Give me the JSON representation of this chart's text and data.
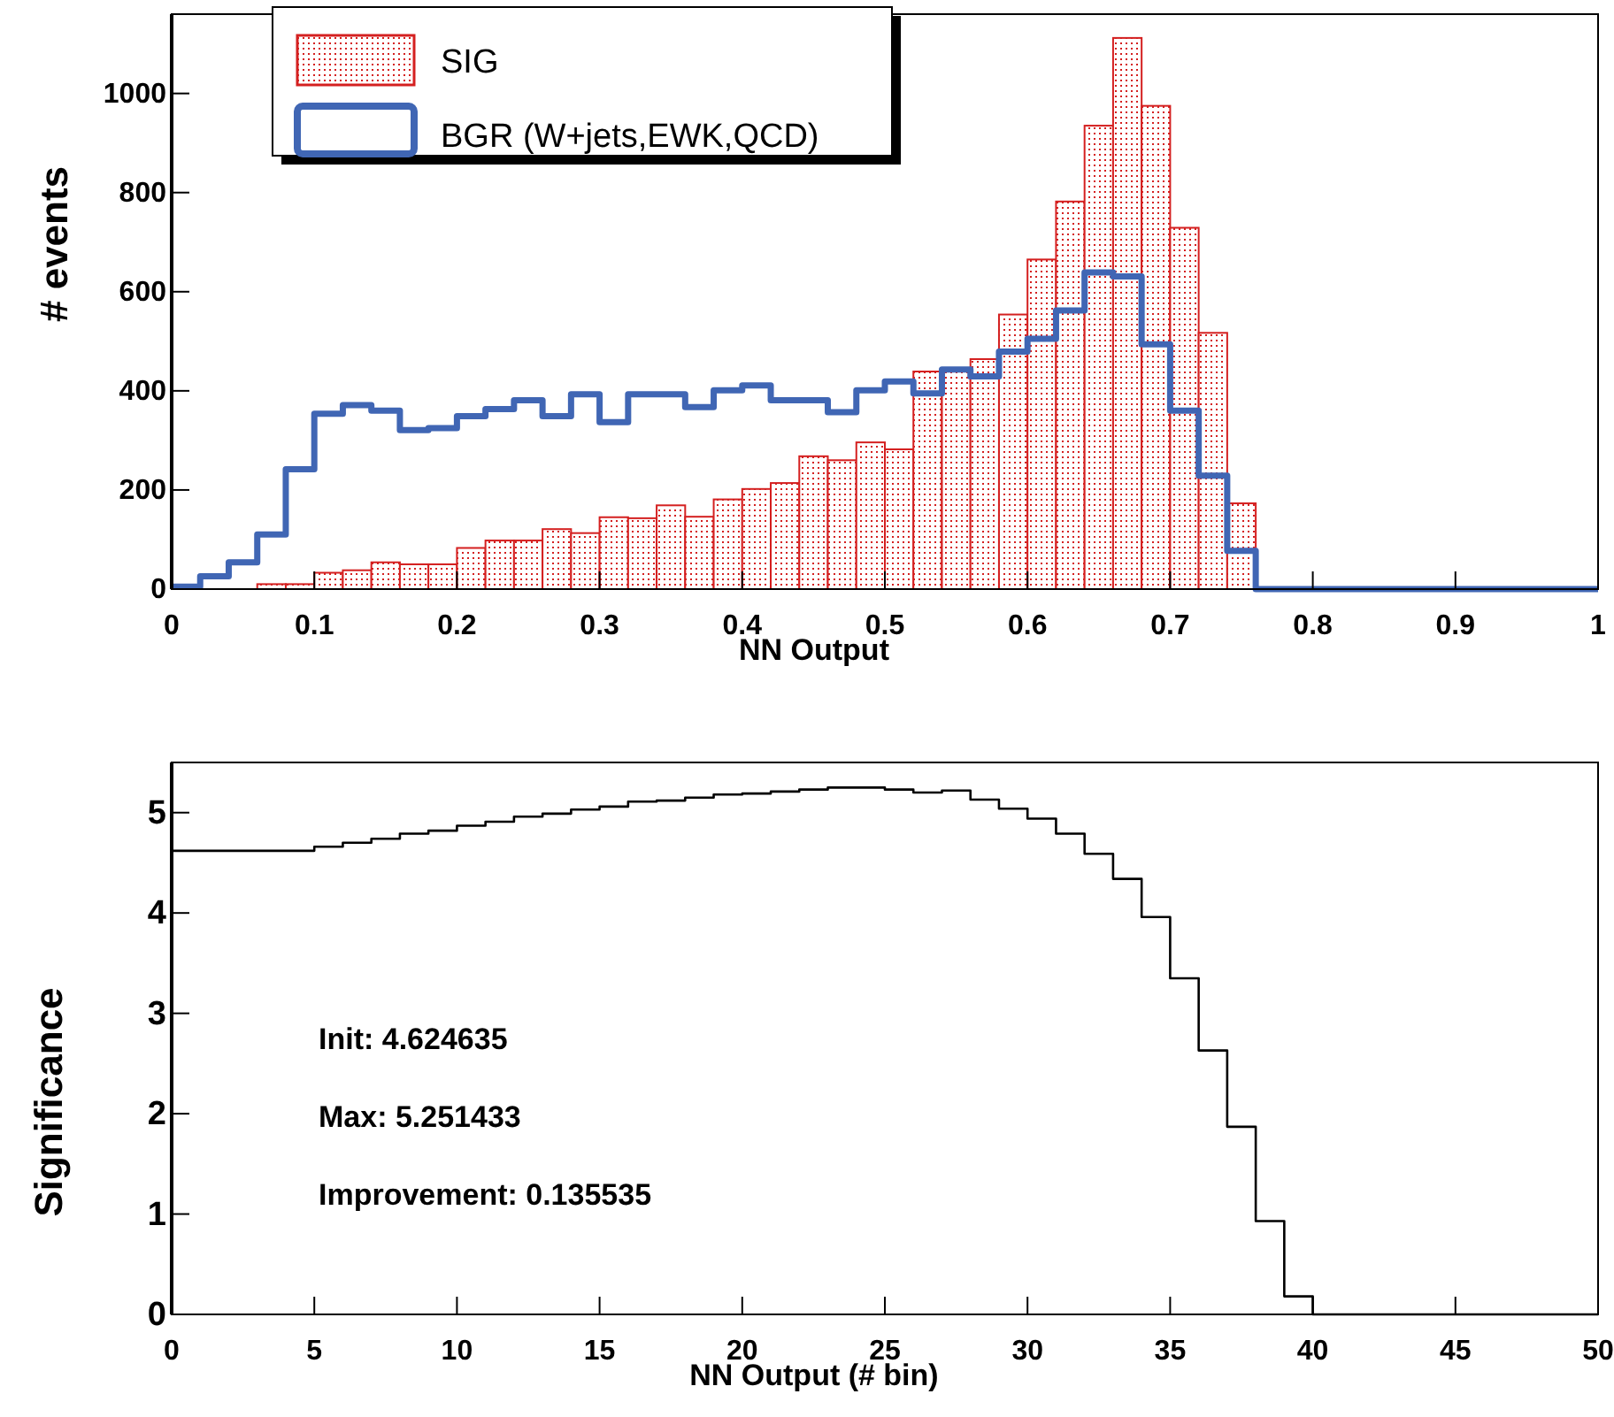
{
  "chart_data": [
    {
      "type": "histogram",
      "xlabel": "NN Output",
      "ylabel": "# events",
      "xlim": [
        0,
        1
      ],
      "ylim": [
        0,
        1160
      ],
      "xticks": [
        0,
        0.1,
        0.2,
        0.3,
        0.4,
        0.5,
        0.6,
        0.7,
        0.8,
        0.9,
        1
      ],
      "yticks": [
        0,
        200,
        400,
        600,
        800,
        1000
      ],
      "bins": [
        0,
        0.02,
        0.04,
        0.06,
        0.08,
        0.1,
        0.12,
        0.14,
        0.16,
        0.18,
        0.2,
        0.22,
        0.24,
        0.26,
        0.28,
        0.3,
        0.32,
        0.34,
        0.36,
        0.38,
        0.4,
        0.42,
        0.44,
        0.46,
        0.48,
        0.5,
        0.52,
        0.54,
        0.56,
        0.58,
        0.6,
        0.62,
        0.64,
        0.66,
        0.68,
        0.7,
        0.72,
        0.74,
        0.76,
        0.78,
        0.8,
        0.82,
        0.84,
        0.86,
        0.88,
        0.9,
        0.92,
        0.94,
        0.96,
        0.98,
        1
      ],
      "legend": "top left",
      "grid": false,
      "series": [
        {
          "name": "SIG",
          "type": "histogram",
          "color": "#d42020",
          "values": [
            0,
            0,
            0,
            10,
            10,
            33,
            38,
            54,
            50,
            50,
            83,
            98,
            98,
            121,
            113,
            145,
            143,
            169,
            146,
            181,
            202,
            214,
            268,
            260,
            296,
            282,
            439,
            439,
            464,
            554,
            665,
            782,
            935,
            1112,
            975,
            729,
            517,
            173,
            0,
            0,
            0,
            0,
            0,
            0,
            0,
            0,
            0,
            0,
            0,
            0
          ]
        },
        {
          "name": "BGR (W+jets,EWK,QCD)",
          "type": "step",
          "color": "#4066b4",
          "x": [
            0,
            0.02,
            0.04,
            0.06,
            0.08,
            0.1,
            0.12,
            0.14,
            0.16,
            0.18,
            0.2,
            0.22,
            0.24,
            0.26,
            0.28,
            0.3,
            0.32,
            0.34,
            0.36,
            0.38,
            0.4,
            0.42,
            0.44,
            0.46,
            0.48,
            0.5,
            0.52,
            0.54,
            0.56,
            0.58,
            0.6,
            0.62,
            0.64,
            0.66,
            0.68,
            0.7,
            0.72,
            0.74,
            0.76,
            0.78,
            0.8,
            0.82,
            0.84,
            0.86,
            0.88,
            0.9,
            0.92,
            0.94,
            0.96,
            0.98,
            1
          ],
          "values": [
            5,
            26,
            54,
            110,
            242,
            354,
            371,
            360,
            321,
            325,
            349,
            363,
            381,
            349,
            393,
            337,
            393,
            393,
            367,
            401,
            411,
            381,
            381,
            357,
            401,
            419,
            395,
            443,
            429,
            479,
            505,
            562,
            639,
            631,
            494,
            360,
            229,
            77,
            0,
            0,
            0,
            0,
            0,
            0,
            0,
            0,
            0,
            0,
            0,
            0,
            0
          ]
        }
      ]
    },
    {
      "type": "step",
      "xlabel": "NN Output (# bin)",
      "ylabel": "Significance",
      "xlim": [
        0,
        50
      ],
      "ylim": [
        0,
        5.5
      ],
      "xticks": [
        0,
        5,
        10,
        15,
        20,
        25,
        30,
        35,
        40,
        45,
        50
      ],
      "yticks": [
        0,
        1,
        2,
        3,
        4,
        5
      ],
      "grid": false,
      "annotations": [
        "Init: 4.624635",
        "Max: 5.251433",
        "Improvement: 0.135535"
      ],
      "series": [
        {
          "color": "#000000",
          "x": [
            0,
            1,
            2,
            3,
            4,
            5,
            6,
            7,
            8,
            9,
            10,
            11,
            12,
            13,
            14,
            15,
            16,
            17,
            18,
            19,
            20,
            21,
            22,
            23,
            24,
            25,
            26,
            27,
            28,
            29,
            30,
            31,
            32,
            33,
            34,
            35,
            36,
            37,
            38,
            39,
            40,
            41,
            42,
            43,
            44,
            45,
            46,
            47,
            48,
            49,
            50
          ],
          "values": [
            4.62,
            4.62,
            4.62,
            4.62,
            4.62,
            4.66,
            4.7,
            4.74,
            4.79,
            4.82,
            4.87,
            4.91,
            4.96,
            4.99,
            5.03,
            5.06,
            5.11,
            5.12,
            5.15,
            5.18,
            5.19,
            5.21,
            5.23,
            5.25,
            5.25,
            5.23,
            5.2,
            5.22,
            5.13,
            5.04,
            4.94,
            4.79,
            4.59,
            4.34,
            3.96,
            3.35,
            2.63,
            1.87,
            0.93,
            0.18,
            0,
            0,
            0,
            0,
            0,
            0,
            0,
            0,
            0,
            0,
            0
          ]
        }
      ]
    }
  ]
}
